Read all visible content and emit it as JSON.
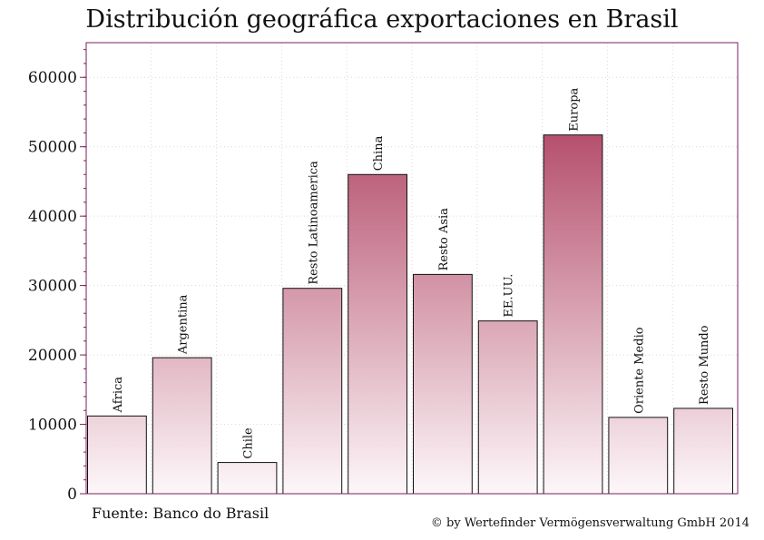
{
  "chart_data": {
    "type": "bar",
    "title": "Distribución geográfica exportaciones en Brasil",
    "xlabel": "",
    "ylabel": "",
    "categories": [
      "Africa",
      "Argentina",
      "Chile",
      "Resto Latinoamerica",
      "China",
      "Resto Asia",
      "EE.UU.",
      "Europa",
      "Oriente Medio",
      "Resto Mundo"
    ],
    "values": [
      11200,
      19600,
      4500,
      29600,
      46000,
      31600,
      24900,
      51700,
      11000,
      12300
    ],
    "ylim": [
      0,
      65000
    ],
    "yticks": [
      0,
      10000,
      20000,
      30000,
      40000,
      50000,
      60000
    ],
    "ytick_labels": [
      "0",
      "10000",
      "20000",
      "30000",
      "40000",
      "50000",
      "60000"
    ],
    "grid": true,
    "legend": "none",
    "bar_label_orientation": "vertical",
    "colors": {
      "bar_top": "#b5506e",
      "bar_bottom": "#fdf7f9",
      "frame": "#7a1f5c",
      "grid": "#d9d9d9",
      "bar_edge": "#111111"
    }
  },
  "source": "Fuente: Banco do Brasil",
  "copyright": "© by Wertefinder Vermögensverwaltung GmbH 2014"
}
